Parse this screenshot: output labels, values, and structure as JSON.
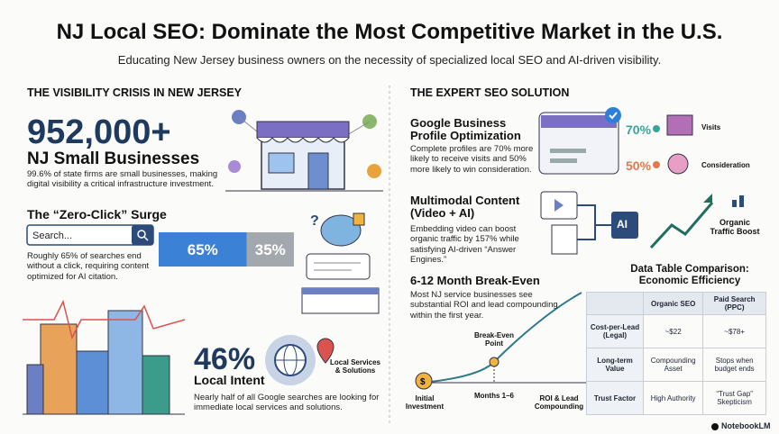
{
  "header": {
    "title": "NJ Local SEO: Dominate the Most Competitive Market in the U.S.",
    "subtitle": "Educating New Jersey business owners on the necessity of specialized local SEO and AI-driven visibility."
  },
  "left": {
    "heading": "THE VISIBILITY CRISIS IN NEW JERSEY",
    "stat": {
      "value": "952,000+",
      "label": "NJ Small Businesses",
      "text": "99.6% of state firms are small businesses, making digital visibility a critical infrastructure investment."
    },
    "zero_click": {
      "title": "The “Zero-Click” Surge",
      "search_placeholder": "Search...",
      "text": "Roughly 65% of searches end without a click, requiring content optimized for AI citation.",
      "bar": {
        "values": [
          65,
          35
        ],
        "value_labels": [
          "65%",
          "35%"
        ],
        "colors": [
          "#3b82d6",
          "#a3a8ae"
        ]
      }
    },
    "local_intent": {
      "value": "46%",
      "label": "Local Intent",
      "icon_label": "Local Services & Solutions",
      "text": "Nearly half of all Google searches are looking for immediate local services and solutions."
    }
  },
  "right": {
    "heading": "THE EXPERT SEO SOLUTION",
    "gbp": {
      "title": "Google Business Profile Optimization",
      "text": "Complete profiles are 70% more likely to receive visits and 50% more likely to win consideration.",
      "metrics": [
        {
          "label": "70%",
          "name": "Visits"
        },
        {
          "label": "50%",
          "name": "Consideration"
        }
      ]
    },
    "multimodal": {
      "title": "Multimodal Content (Video + AI)",
      "text": "Embedding video can boost organic traffic by 157% while satisfying AI-driven “Answer Engines.”",
      "ai_label": "AI",
      "result": "Organic Traffic Boost"
    },
    "breakeven": {
      "title": "6-12 Month Break-Even",
      "text": "Most NJ service businesses see substantial ROI and lead compounding within the first year.",
      "point_label": "Break-Even Point",
      "start_label": "Initial Investment",
      "middle_label": "Months 1–6",
      "end_label": "ROI & Lead Compounding"
    },
    "table": {
      "title": "Data Table Comparison: Economic Efficiency",
      "columns": [
        "Organic SEO",
        "Paid Search (PPC)"
      ],
      "rows": [
        {
          "label": "Cost-per-Lead (Legal)",
          "cells": [
            "~$22",
            "~$78+"
          ]
        },
        {
          "label": "Long-term Value",
          "cells": [
            "Compounding Asset",
            "Stops when budget ends"
          ]
        },
        {
          "label": "Trust Factor",
          "cells": [
            "High Authority",
            "“Trust Gap” Skepticism"
          ]
        }
      ]
    }
  },
  "footer": {
    "brand": "NotebookLM"
  }
}
